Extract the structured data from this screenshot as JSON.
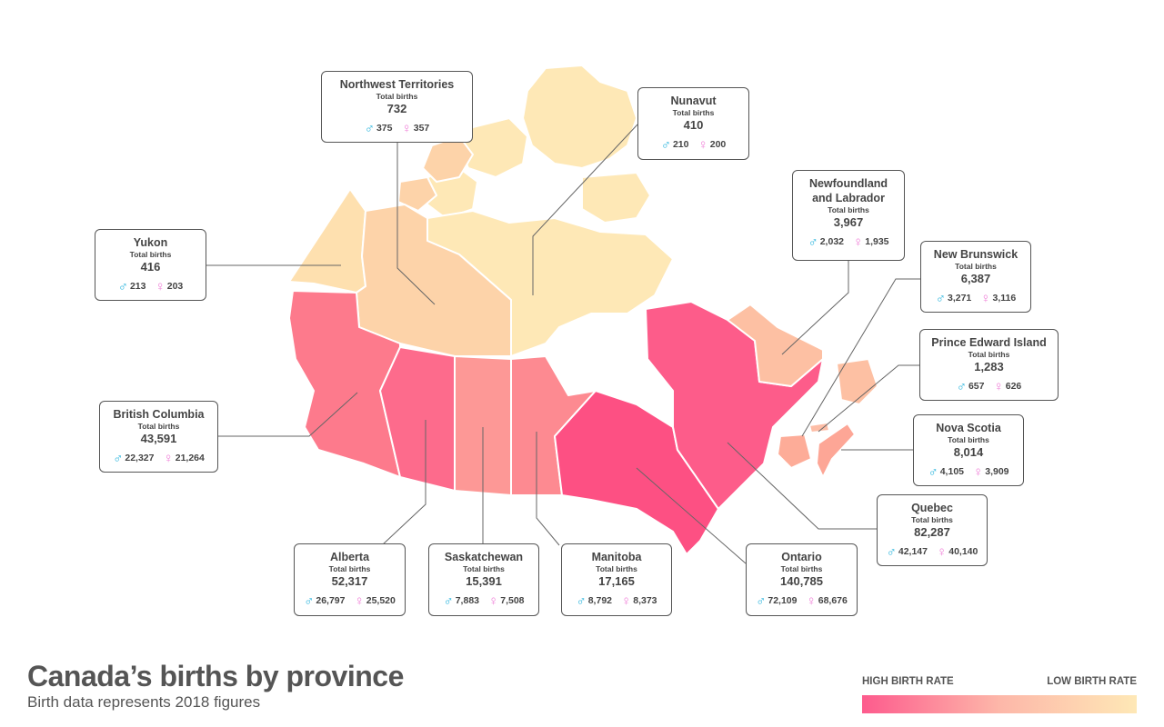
{
  "title": "Canada’s births by province",
  "subtitle": "Birth data represents 2018 figures",
  "legend": {
    "high_label": "HIGH BIRTH RATE",
    "low_label": "LOW BIRTH RATE",
    "colors": [
      "#fd5b8d",
      "#fdb7a9",
      "#fee8b6"
    ]
  },
  "total_births_label": "Total births",
  "provinces": {
    "northwest_territories": {
      "name": "Northwest Territories",
      "total": "732",
      "male": "375",
      "female": "357",
      "color": "#fdd3a9"
    },
    "nunavut": {
      "name": "Nunavut",
      "total": "410",
      "male": "210",
      "female": "200",
      "color": "#fee8b6"
    },
    "newfoundland": {
      "name": "Newfoundland and Labrador",
      "total": "3,967",
      "male": "2,032",
      "female": "1,935",
      "color": "#fdc0a3"
    },
    "yukon": {
      "name": "Yukon",
      "total": "416",
      "male": "213",
      "female": "203",
      "color": "#fee0af"
    },
    "new_brunswick": {
      "name": "New Brunswick",
      "total": "6,387",
      "male": "3,271",
      "female": "3,116",
      "color": "#fdac98"
    },
    "pei": {
      "name": "Prince Edward Island",
      "total": "1,283",
      "male": "657",
      "female": "626",
      "color": "#fdbda6"
    },
    "british_columbia": {
      "name": "British Columbia",
      "total": "43,591",
      "male": "22,327",
      "female": "21,264",
      "color": "#fd7a8c"
    },
    "nova_scotia": {
      "name": "Nova Scotia",
      "total": "8,014",
      "male": "4,105",
      "female": "3,909",
      "color": "#fda696"
    },
    "quebec": {
      "name": "Quebec",
      "total": "82,287",
      "male": "42,147",
      "female": "40,140",
      "color": "#fd5c8a"
    },
    "alberta": {
      "name": "Alberta",
      "total": "52,317",
      "male": "26,797",
      "female": "25,520",
      "color": "#fd6b8c"
    },
    "saskatchewan": {
      "name": "Saskatchewan",
      "total": "15,391",
      "male": "7,883",
      "female": "7,508",
      "color": "#fd9896"
    },
    "manitoba": {
      "name": "Manitoba",
      "total": "17,165",
      "male": "8,792",
      "female": "8,373",
      "color": "#fd8a91"
    },
    "ontario": {
      "name": "Ontario",
      "total": "140,785",
      "male": "72,109",
      "female": "68,676",
      "color": "#fd5083"
    }
  },
  "icons": {
    "male": "male-symbol-icon",
    "female": "female-symbol-icon"
  }
}
